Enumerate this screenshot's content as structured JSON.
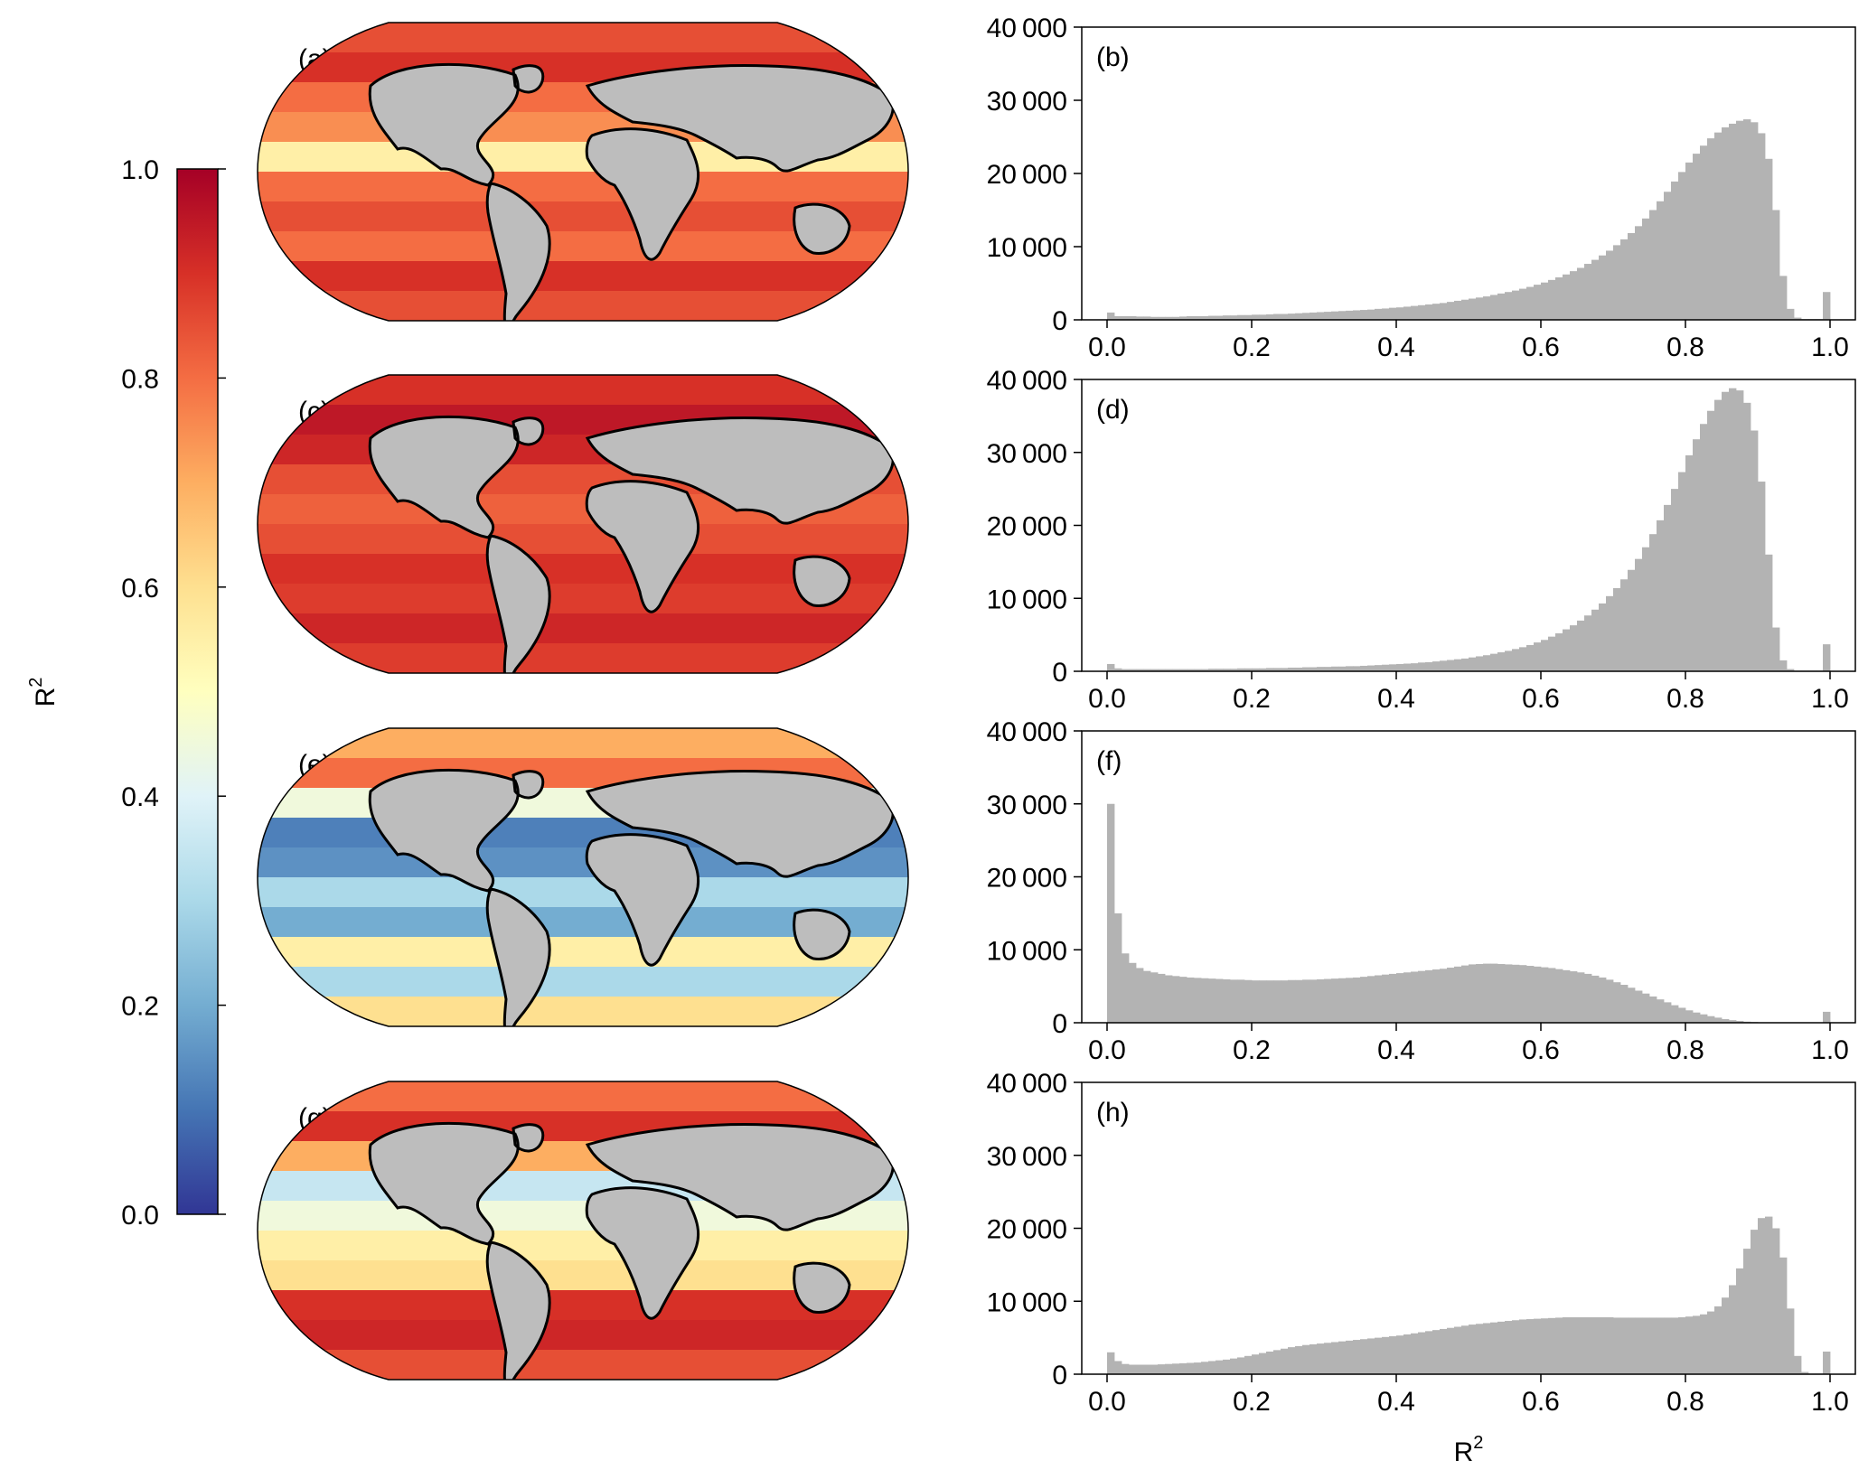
{
  "colorbar": {
    "ticks": [
      0.0,
      0.2,
      0.4,
      0.6,
      0.8,
      1.0
    ],
    "tick_labels": [
      "0.0",
      "0.2",
      "0.4",
      "0.6",
      "0.8",
      "1.0"
    ],
    "label_base": "R",
    "label_sup": "2",
    "colormap": "RdYlBu_r",
    "range": [
      0.0,
      1.0
    ]
  },
  "maps": [
    {
      "label": "(a)",
      "profile": "a"
    },
    {
      "label": "(c)",
      "profile": "c"
    },
    {
      "label": "(e)",
      "profile": "e"
    },
    {
      "label": "(g)",
      "profile": "g"
    }
  ],
  "colors": {
    "bar": "#b3b3b3",
    "land": "#bdbdbd",
    "coast": "#000000"
  },
  "chart_data": [
    {
      "type": "bar",
      "panel": "(b)",
      "x": [
        0.0,
        0.01,
        0.02,
        0.03,
        0.04,
        0.05,
        0.06,
        0.07,
        0.08,
        0.09,
        0.1,
        0.11,
        0.12,
        0.13,
        0.14,
        0.15,
        0.16,
        0.17,
        0.18,
        0.19,
        0.2,
        0.21,
        0.22,
        0.23,
        0.24,
        0.25,
        0.26,
        0.27,
        0.28,
        0.29,
        0.3,
        0.31,
        0.32,
        0.33,
        0.34,
        0.35,
        0.36,
        0.37,
        0.38,
        0.39,
        0.4,
        0.41,
        0.42,
        0.43,
        0.44,
        0.45,
        0.46,
        0.47,
        0.48,
        0.49,
        0.5,
        0.51,
        0.52,
        0.53,
        0.54,
        0.55,
        0.56,
        0.57,
        0.58,
        0.59,
        0.6,
        0.61,
        0.62,
        0.63,
        0.64,
        0.65,
        0.66,
        0.67,
        0.68,
        0.69,
        0.7,
        0.71,
        0.72,
        0.73,
        0.74,
        0.75,
        0.76,
        0.77,
        0.78,
        0.79,
        0.8,
        0.81,
        0.82,
        0.83,
        0.84,
        0.85,
        0.86,
        0.87,
        0.88,
        0.89,
        0.9,
        0.91,
        0.92,
        0.93,
        0.94,
        0.95,
        0.96,
        0.97,
        0.98,
        0.99
      ],
      "values": [
        1000,
        500,
        500,
        500,
        450,
        450,
        400,
        400,
        400,
        400,
        450,
        500,
        500,
        500,
        550,
        550,
        600,
        600,
        650,
        650,
        700,
        700,
        750,
        800,
        800,
        850,
        900,
        950,
        1000,
        1050,
        1100,
        1150,
        1200,
        1250,
        1300,
        1350,
        1400,
        1500,
        1550,
        1650,
        1700,
        1800,
        1900,
        2000,
        2100,
        2200,
        2300,
        2450,
        2600,
        2750,
        2900,
        3050,
        3200,
        3400,
        3600,
        3800,
        4000,
        4250,
        4500,
        4800,
        5100,
        5450,
        5800,
        6200,
        6650,
        7100,
        7650,
        8200,
        8800,
        9450,
        10200,
        11000,
        11850,
        12800,
        13850,
        15000,
        16200,
        17500,
        18900,
        20200,
        21500,
        22700,
        23800,
        24800,
        25600,
        26300,
        26800,
        27200,
        27400,
        27000,
        25500,
        22000,
        15000,
        6000,
        1500,
        300,
        100,
        100,
        100,
        3800
      ],
      "xticks": [
        0.0,
        0.2,
        0.4,
        0.6,
        0.8,
        1.0
      ],
      "xtick_labels": [
        "0.0",
        "0.2",
        "0.4",
        "0.6",
        "0.8",
        "1.0"
      ],
      "yticks": [
        0,
        10000,
        20000,
        30000,
        40000
      ],
      "ytick_labels": [
        "0",
        "10 000",
        "20 000",
        "30 000",
        "40 000"
      ],
      "xlim": [
        -0.035,
        1.035
      ],
      "ylim": [
        0,
        40000
      ],
      "bin_width": 0.01
    },
    {
      "type": "bar",
      "panel": "(d)",
      "x": [
        0.0,
        0.01,
        0.02,
        0.03,
        0.04,
        0.05,
        0.06,
        0.07,
        0.08,
        0.09,
        0.1,
        0.11,
        0.12,
        0.13,
        0.14,
        0.15,
        0.16,
        0.17,
        0.18,
        0.19,
        0.2,
        0.21,
        0.22,
        0.23,
        0.24,
        0.25,
        0.26,
        0.27,
        0.28,
        0.29,
        0.3,
        0.31,
        0.32,
        0.33,
        0.34,
        0.35,
        0.36,
        0.37,
        0.38,
        0.39,
        0.4,
        0.41,
        0.42,
        0.43,
        0.44,
        0.45,
        0.46,
        0.47,
        0.48,
        0.49,
        0.5,
        0.51,
        0.52,
        0.53,
        0.54,
        0.55,
        0.56,
        0.57,
        0.58,
        0.59,
        0.6,
        0.61,
        0.62,
        0.63,
        0.64,
        0.65,
        0.66,
        0.67,
        0.68,
        0.69,
        0.7,
        0.71,
        0.72,
        0.73,
        0.74,
        0.75,
        0.76,
        0.77,
        0.78,
        0.79,
        0.8,
        0.81,
        0.82,
        0.83,
        0.84,
        0.85,
        0.86,
        0.87,
        0.88,
        0.89,
        0.9,
        0.91,
        0.92,
        0.93,
        0.94,
        0.95,
        0.96,
        0.97,
        0.98,
        0.99
      ],
      "values": [
        1000,
        400,
        300,
        300,
        300,
        300,
        300,
        300,
        300,
        300,
        300,
        300,
        300,
        300,
        350,
        350,
        350,
        350,
        400,
        400,
        400,
        400,
        450,
        450,
        450,
        500,
        500,
        550,
        550,
        600,
        600,
        650,
        650,
        700,
        700,
        750,
        800,
        850,
        900,
        950,
        1000,
        1050,
        1100,
        1200,
        1250,
        1350,
        1450,
        1550,
        1650,
        1750,
        1900,
        2050,
        2200,
        2400,
        2600,
        2800,
        3050,
        3300,
        3600,
        3950,
        4300,
        4750,
        5200,
        5750,
        6300,
        6950,
        7650,
        8450,
        9300,
        10300,
        11400,
        12600,
        13900,
        15400,
        17000,
        18800,
        20700,
        22800,
        25000,
        27300,
        29600,
        31800,
        33900,
        35700,
        37200,
        38300,
        38800,
        38500,
        36800,
        33000,
        26000,
        16000,
        6000,
        1500,
        300,
        100,
        100,
        100,
        100,
        3700
      ],
      "xticks": [
        0.0,
        0.2,
        0.4,
        0.6,
        0.8,
        1.0
      ],
      "xtick_labels": [
        "0.0",
        "0.2",
        "0.4",
        "0.6",
        "0.8",
        "1.0"
      ],
      "yticks": [
        0,
        10000,
        20000,
        30000,
        40000
      ],
      "ytick_labels": [
        "0",
        "10 000",
        "20 000",
        "30 000",
        "40 000"
      ],
      "xlim": [
        -0.035,
        1.035
      ],
      "ylim": [
        0,
        40000
      ],
      "bin_width": 0.01
    },
    {
      "type": "bar",
      "panel": "(f)",
      "x": [
        0.0,
        0.01,
        0.02,
        0.03,
        0.04,
        0.05,
        0.06,
        0.07,
        0.08,
        0.09,
        0.1,
        0.11,
        0.12,
        0.13,
        0.14,
        0.15,
        0.16,
        0.17,
        0.18,
        0.19,
        0.2,
        0.21,
        0.22,
        0.23,
        0.24,
        0.25,
        0.26,
        0.27,
        0.28,
        0.29,
        0.3,
        0.31,
        0.32,
        0.33,
        0.34,
        0.35,
        0.36,
        0.37,
        0.38,
        0.39,
        0.4,
        0.41,
        0.42,
        0.43,
        0.44,
        0.45,
        0.46,
        0.47,
        0.48,
        0.49,
        0.5,
        0.51,
        0.52,
        0.53,
        0.54,
        0.55,
        0.56,
        0.57,
        0.58,
        0.59,
        0.6,
        0.61,
        0.62,
        0.63,
        0.64,
        0.65,
        0.66,
        0.67,
        0.68,
        0.69,
        0.7,
        0.71,
        0.72,
        0.73,
        0.74,
        0.75,
        0.76,
        0.77,
        0.78,
        0.79,
        0.8,
        0.81,
        0.82,
        0.83,
        0.84,
        0.85,
        0.86,
        0.87,
        0.88,
        0.89,
        0.9,
        0.91,
        0.92,
        0.93,
        0.94,
        0.95,
        0.96,
        0.97,
        0.98,
        0.99
      ],
      "values": [
        30000,
        15000,
        9500,
        8200,
        7500,
        7100,
        6900,
        6700,
        6500,
        6400,
        6300,
        6200,
        6150,
        6100,
        6050,
        6000,
        5950,
        5900,
        5900,
        5850,
        5800,
        5800,
        5800,
        5800,
        5800,
        5850,
        5850,
        5900,
        5900,
        5950,
        6000,
        6050,
        6100,
        6150,
        6200,
        6300,
        6400,
        6500,
        6600,
        6700,
        6800,
        6900,
        7000,
        7100,
        7200,
        7300,
        7400,
        7550,
        7700,
        7850,
        8000,
        8050,
        8100,
        8100,
        8050,
        8000,
        7950,
        7900,
        7800,
        7700,
        7600,
        7500,
        7350,
        7200,
        7050,
        6900,
        6700,
        6450,
        6200,
        5900,
        5550,
        5200,
        4800,
        4400,
        4000,
        3600,
        3200,
        2800,
        2400,
        2050,
        1700,
        1400,
        1150,
        900,
        700,
        500,
        350,
        250,
        150,
        100,
        50,
        30,
        20,
        20,
        20,
        20,
        20,
        20,
        20,
        1500
      ],
      "xticks": [
        0.0,
        0.2,
        0.4,
        0.6,
        0.8,
        1.0
      ],
      "xtick_labels": [
        "0.0",
        "0.2",
        "0.4",
        "0.6",
        "0.8",
        "1.0"
      ],
      "yticks": [
        0,
        10000,
        20000,
        30000,
        40000
      ],
      "ytick_labels": [
        "0",
        "10 000",
        "20 000",
        "30 000",
        "40 000"
      ],
      "xlim": [
        -0.035,
        1.035
      ],
      "ylim": [
        0,
        40000
      ],
      "bin_width": 0.01
    },
    {
      "type": "bar",
      "panel": "(h)",
      "x": [
        0.0,
        0.01,
        0.02,
        0.03,
        0.04,
        0.05,
        0.06,
        0.07,
        0.08,
        0.09,
        0.1,
        0.11,
        0.12,
        0.13,
        0.14,
        0.15,
        0.16,
        0.17,
        0.18,
        0.19,
        0.2,
        0.21,
        0.22,
        0.23,
        0.24,
        0.25,
        0.26,
        0.27,
        0.28,
        0.29,
        0.3,
        0.31,
        0.32,
        0.33,
        0.34,
        0.35,
        0.36,
        0.37,
        0.38,
        0.39,
        0.4,
        0.41,
        0.42,
        0.43,
        0.44,
        0.45,
        0.46,
        0.47,
        0.48,
        0.49,
        0.5,
        0.51,
        0.52,
        0.53,
        0.54,
        0.55,
        0.56,
        0.57,
        0.58,
        0.59,
        0.6,
        0.61,
        0.62,
        0.63,
        0.64,
        0.65,
        0.66,
        0.67,
        0.68,
        0.69,
        0.7,
        0.71,
        0.72,
        0.73,
        0.74,
        0.75,
        0.76,
        0.77,
        0.78,
        0.79,
        0.8,
        0.81,
        0.82,
        0.83,
        0.84,
        0.85,
        0.86,
        0.87,
        0.88,
        0.89,
        0.9,
        0.91,
        0.92,
        0.93,
        0.94,
        0.95,
        0.96,
        0.97,
        0.98,
        0.99
      ],
      "values": [
        3000,
        1800,
        1400,
        1300,
        1300,
        1300,
        1300,
        1350,
        1400,
        1450,
        1500,
        1550,
        1600,
        1700,
        1800,
        1900,
        2000,
        2150,
        2300,
        2500,
        2700,
        2900,
        3100,
        3300,
        3500,
        3700,
        3850,
        4000,
        4100,
        4200,
        4300,
        4400,
        4500,
        4600,
        4700,
        4800,
        4900,
        5000,
        5100,
        5200,
        5300,
        5450,
        5600,
        5750,
        5900,
        6050,
        6200,
        6350,
        6500,
        6650,
        6800,
        6900,
        7000,
        7100,
        7200,
        7300,
        7400,
        7500,
        7550,
        7600,
        7650,
        7700,
        7750,
        7800,
        7800,
        7800,
        7800,
        7800,
        7800,
        7800,
        7750,
        7750,
        7750,
        7750,
        7750,
        7750,
        7750,
        7750,
        7750,
        7800,
        7900,
        8000,
        8200,
        8600,
        9300,
        10500,
        12200,
        14500,
        17200,
        19800,
        21400,
        21600,
        20000,
        16000,
        9000,
        2500,
        300,
        100,
        100,
        3100
      ],
      "xticks": [
        0.0,
        0.2,
        0.4,
        0.6,
        0.8,
        1.0
      ],
      "xtick_labels": [
        "0.0",
        "0.2",
        "0.4",
        "0.6",
        "0.8",
        "1.0"
      ],
      "yticks": [
        0,
        10000,
        20000,
        30000,
        40000
      ],
      "ytick_labels": [
        "0",
        "10 000",
        "20 000",
        "30 000",
        "40 000"
      ],
      "xlim": [
        -0.035,
        1.035
      ],
      "ylim": [
        0,
        40000
      ],
      "bin_width": 0.01,
      "xlabel_base": "R",
      "xlabel_sup": "2"
    }
  ]
}
